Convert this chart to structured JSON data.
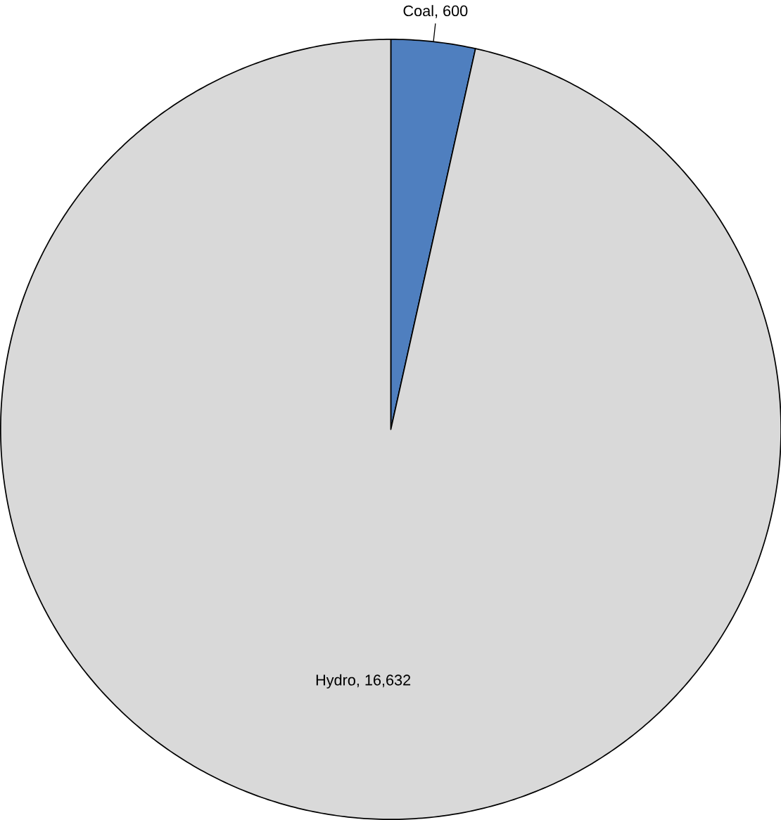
{
  "chart_data": {
    "type": "pie",
    "categories": [
      "Coal",
      "Hydro"
    ],
    "values": [
      600,
      16632
    ],
    "value_labels": [
      ", 600",
      ", 16,632"
    ],
    "colors": [
      "#4f7fbf",
      "#d9d9d9"
    ]
  }
}
